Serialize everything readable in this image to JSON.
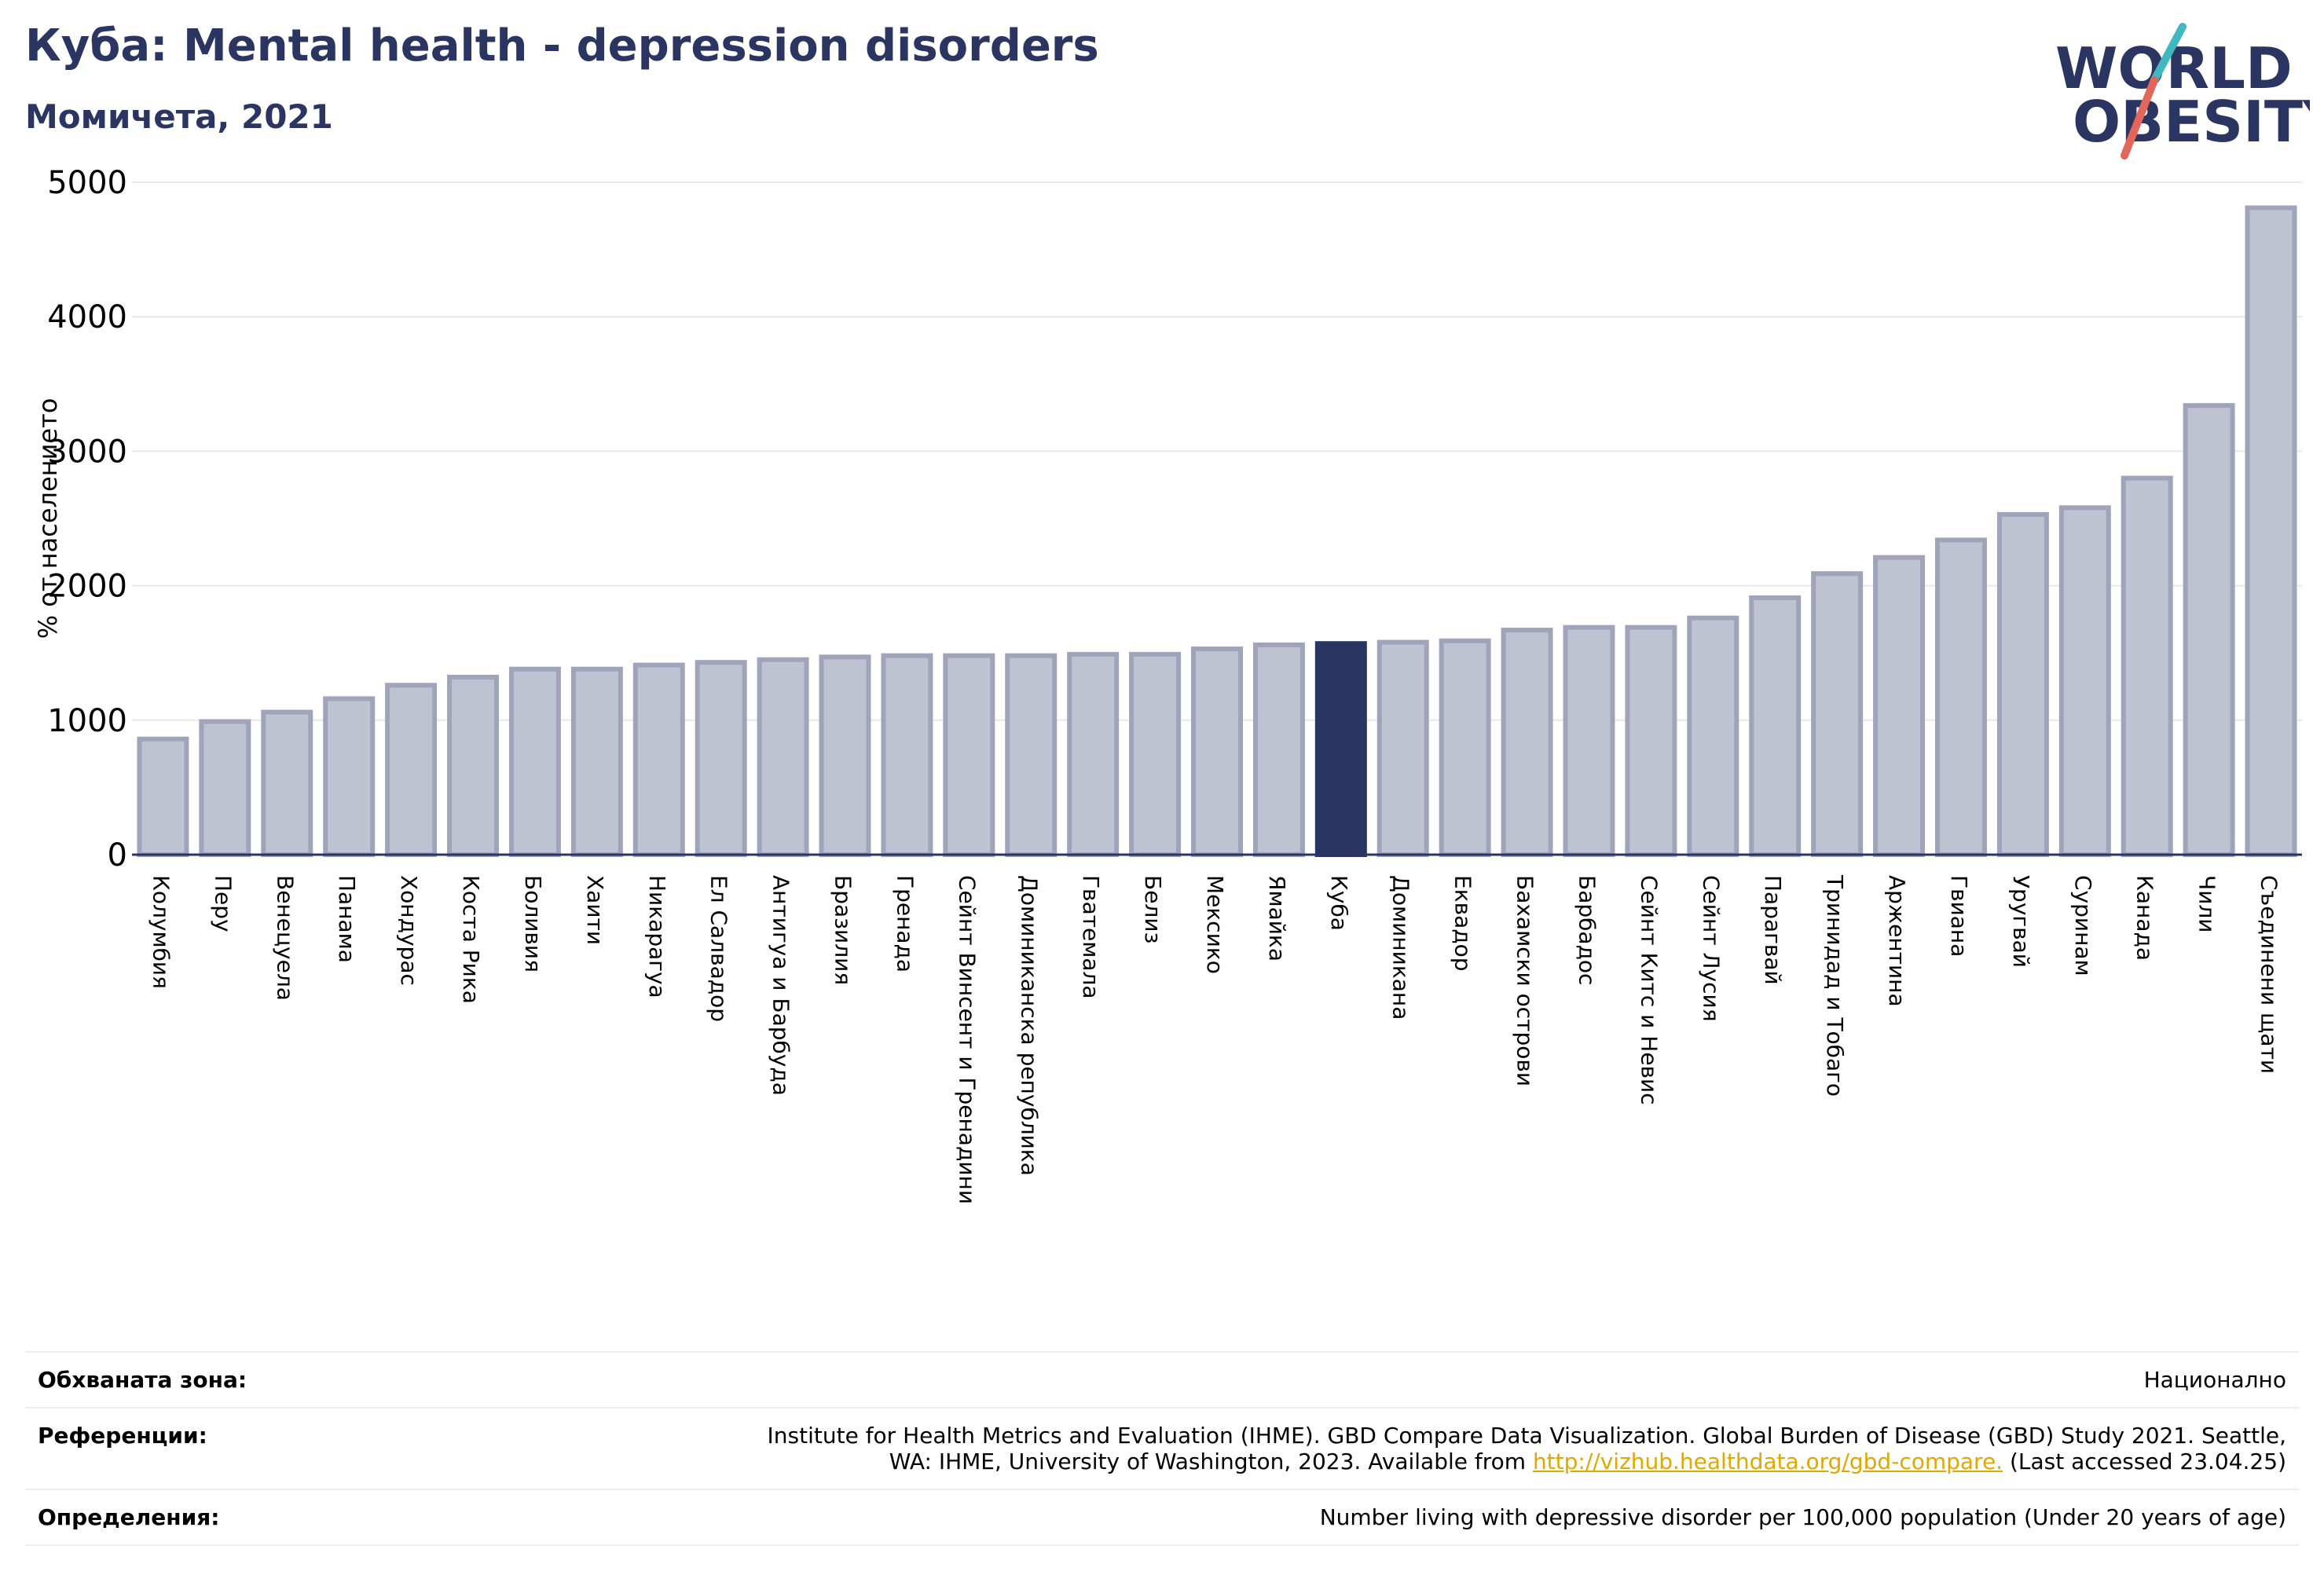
{
  "header": {
    "title": "Куба: Mental health - depression disorders",
    "subtitle": "Момичета, 2021"
  },
  "logo": {
    "line1": "WORLD",
    "line2": "OBESITY"
  },
  "colors": {
    "highlight": "#2b3561",
    "bar": "#bfc2d0",
    "bar_border": "#a0a4ba",
    "title": "#2b3561",
    "logo_slash_top": "#3fb8c0",
    "logo_slash_bottom": "#e2675a"
  },
  "chart_data": {
    "type": "bar",
    "title": "Куба: Mental health - depression disorders",
    "subtitle": "Момичета, 2021",
    "ylabel": "% от населението",
    "ylim": [
      0,
      5000
    ],
    "yticks": [
      0,
      1000,
      2000,
      3000,
      4000,
      5000
    ],
    "grid": true,
    "highlight": "Куба",
    "categories": [
      "Колумбия",
      "Перу",
      "Венецуела",
      "Панама",
      "Хондурас",
      "Коста Рика",
      "Боливия",
      "Хаити",
      "Никарагуа",
      "Ел Салвадор",
      "Антигуа и Барбуда",
      "Бразилия",
      "Гренада",
      "Сейнт Винсент и Гренадини",
      "Доминиканска република",
      "Гватемала",
      "Белиз",
      "Мексико",
      "Ямайка",
      "Куба",
      "Доминикана",
      "Еквадор",
      "Бахамски острови",
      "Барбадос",
      "Сейнт Китс и Невис",
      "Сейнт Лусия",
      "Парагвай",
      "Тринидад и Тобаго",
      "Аржентина",
      "Гвиана",
      "Уругвай",
      "Суринам",
      "Канада",
      "Чили",
      "Съединени щати"
    ],
    "values": [
      860,
      990,
      1060,
      1160,
      1260,
      1320,
      1380,
      1380,
      1410,
      1430,
      1450,
      1470,
      1480,
      1480,
      1480,
      1490,
      1490,
      1530,
      1560,
      1570,
      1580,
      1590,
      1670,
      1690,
      1690,
      1760,
      1910,
      2090,
      2210,
      2340,
      2530,
      2580,
      2800,
      3340,
      4810
    ]
  },
  "meta": {
    "coverage_label": "Обхваната зона:",
    "coverage_value": "Национално",
    "references_label": "Референции:",
    "references_line1": "Institute for Health Metrics and Evaluation (IHME). GBD Compare Data Visualization. Global Burden of Disease (GBD) Study 2021. Seattle,",
    "references_line2_pre": "WA: IHME, University of Washington, 2023. Available from ",
    "references_link": "http://vizhub.healthdata.org/gbd-compare.",
    "references_line2_post": " (Last accessed 23.04.25)",
    "definitions_label": "Определения:",
    "definitions_value": "Number living with depressive disorder per 100,000 population (Under 20 years of age)"
  }
}
